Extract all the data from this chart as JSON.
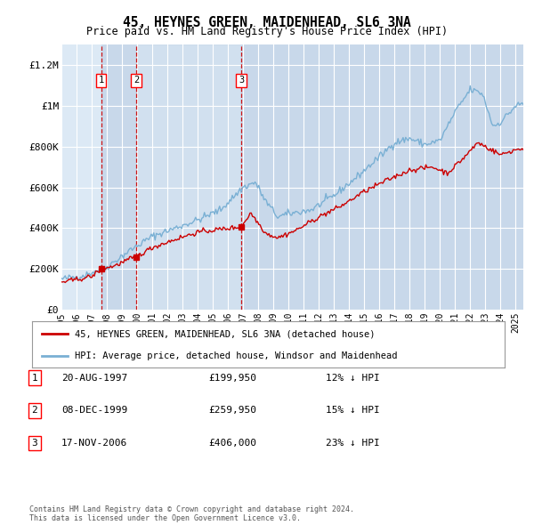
{
  "title": "45, HEYNES GREEN, MAIDENHEAD, SL6 3NA",
  "subtitle": "Price paid vs. HM Land Registry's House Price Index (HPI)",
  "background_color": "#ffffff",
  "plot_bg_color": "#dce9f5",
  "grid_color": "#ffffff",
  "hpi_line_color": "#7ab0d4",
  "price_line_color": "#cc0000",
  "purchase_marker_color": "#cc0000",
  "vline_color": "#cc0000",
  "shade_color": "#c8d8ea",
  "legend_label_red": "45, HEYNES GREEN, MAIDENHEAD, SL6 3NA (detached house)",
  "legend_label_blue": "HPI: Average price, detached house, Windsor and Maidenhead",
  "purchases": [
    {
      "num": 1,
      "date_x": 1997.63,
      "price": 199950,
      "label": "20-AUG-1997",
      "pct": "12%"
    },
    {
      "num": 2,
      "date_x": 1999.93,
      "price": 259950,
      "label": "08-DEC-1999",
      "pct": "15%"
    },
    {
      "num": 3,
      "date_x": 2006.88,
      "price": 406000,
      "label": "17-NOV-2006",
      "pct": "23%"
    }
  ],
  "table_rows": [
    {
      "num": "1",
      "date": "20-AUG-1997",
      "price": "£199,950",
      "pct": "12% ↓ HPI"
    },
    {
      "num": "2",
      "date": "08-DEC-1999",
      "price": "£259,950",
      "pct": "15% ↓ HPI"
    },
    {
      "num": "3",
      "date": "17-NOV-2006",
      "price": "£406,000",
      "pct": "23% ↓ HPI"
    }
  ],
  "footnote": "Contains HM Land Registry data © Crown copyright and database right 2024.\nThis data is licensed under the Open Government Licence v3.0.",
  "ylim": [
    0,
    1300000
  ],
  "xlim_start": 1995.0,
  "xlim_end": 2025.5,
  "yticks": [
    0,
    200000,
    400000,
    600000,
    800000,
    1000000,
    1200000
  ],
  "ytick_labels": [
    "£0",
    "£200K",
    "£400K",
    "£600K",
    "£800K",
    "£1M",
    "£1.2M"
  ]
}
